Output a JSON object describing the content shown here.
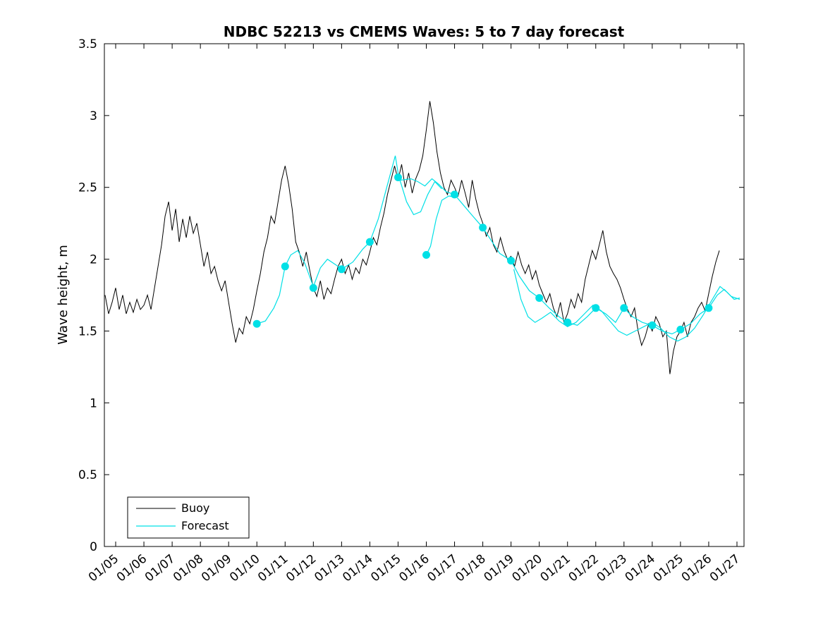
{
  "figure": {
    "title": "NDBC 52213 vs CMEMS Waves: 5 to 7 day forecast",
    "ylabel": "Wave height, m",
    "background_color": "#ffffff",
    "axes_color": "#000000"
  },
  "legend": {
    "entries": [
      {
        "label": "Buoy",
        "color": "#000000"
      },
      {
        "label": "Forecast",
        "color": "#00e0e6"
      }
    ],
    "position": "bottom-left",
    "border_color": "#000000"
  },
  "chart_data": {
    "type": "line",
    "title": "NDBC 52213 vs CMEMS Waves: 5 to 7 day forecast",
    "xlabel": "",
    "ylabel": "Wave height, m",
    "xlim": [
      4.6,
      27.25
    ],
    "ylim": [
      0,
      3.5
    ],
    "grid": false,
    "yticks": [
      0,
      0.5,
      1,
      1.5,
      2,
      2.5,
      3,
      3.5
    ],
    "ytick_labels": [
      "0",
      "0.5",
      "1",
      "1.5",
      "2",
      "2.5",
      "3",
      "3.5"
    ],
    "xticks": [
      5,
      6,
      7,
      8,
      9,
      10,
      11,
      12,
      13,
      14,
      15,
      16,
      17,
      18,
      19,
      20,
      21,
      22,
      23,
      24,
      25,
      26,
      27
    ],
    "xtick_labels": [
      "01/05",
      "01/06",
      "01/07",
      "01/08",
      "01/09",
      "01/10",
      "01/11",
      "01/12",
      "01/13",
      "01/14",
      "01/15",
      "01/16",
      "01/17",
      "01/18",
      "01/19",
      "01/20",
      "01/21",
      "01/22",
      "01/23",
      "01/24",
      "01/25",
      "01/26",
      "01/27"
    ],
    "series": [
      {
        "name": "Buoy",
        "color": "#000000",
        "style": "noisy-line",
        "x_start": 4.625,
        "x_step": 0.125,
        "values": [
          1.75,
          1.62,
          1.7,
          1.8,
          1.65,
          1.75,
          1.62,
          1.7,
          1.63,
          1.72,
          1.65,
          1.68,
          1.75,
          1.65,
          1.8,
          1.95,
          2.1,
          2.3,
          2.4,
          2.2,
          2.35,
          2.12,
          2.28,
          2.15,
          2.3,
          2.18,
          2.25,
          2.1,
          1.95,
          2.05,
          1.9,
          1.95,
          1.85,
          1.78,
          1.85,
          1.7,
          1.55,
          1.42,
          1.52,
          1.48,
          1.6,
          1.55,
          1.65,
          1.78,
          1.9,
          2.05,
          2.15,
          2.3,
          2.25,
          2.4,
          2.55,
          2.65,
          2.52,
          2.35,
          2.12,
          2.05,
          1.95,
          2.05,
          1.92,
          1.8,
          1.74,
          1.85,
          1.72,
          1.8,
          1.76,
          1.86,
          1.95,
          2.0,
          1.9,
          1.96,
          1.86,
          1.94,
          1.9,
          2.0,
          1.96,
          2.05,
          2.15,
          2.1,
          2.22,
          2.32,
          2.45,
          2.55,
          2.65,
          2.55,
          2.66,
          2.5,
          2.6,
          2.46,
          2.56,
          2.62,
          2.72,
          2.9,
          3.1,
          2.95,
          2.75,
          2.6,
          2.5,
          2.45,
          2.55,
          2.5,
          2.44,
          2.55,
          2.46,
          2.36,
          2.55,
          2.42,
          2.32,
          2.25,
          2.16,
          2.22,
          2.1,
          2.05,
          2.15,
          2.06,
          2.0,
          2.02,
          1.95,
          2.05,
          1.96,
          1.9,
          1.96,
          1.86,
          1.92,
          1.82,
          1.76,
          1.7,
          1.76,
          1.66,
          1.6,
          1.7,
          1.56,
          1.62,
          1.72,
          1.66,
          1.76,
          1.7,
          1.86,
          1.96,
          2.06,
          2.0,
          2.1,
          2.2,
          2.05,
          1.95,
          1.9,
          1.86,
          1.8,
          1.72,
          1.65,
          1.6,
          1.66,
          1.5,
          1.4,
          1.46,
          1.55,
          1.5,
          1.6,
          1.55,
          1.46,
          1.5,
          1.2,
          1.36,
          1.46,
          1.5,
          1.56,
          1.46,
          1.56,
          1.6,
          1.66,
          1.7,
          1.64,
          1.76,
          1.88,
          1.98,
          2.06
        ]
      },
      {
        "name": "Forecast",
        "color": "#00e0e6",
        "style": "line-with-daily-markers",
        "segments": [
          [
            [
              10.0,
              1.55
            ],
            [
              10.3,
              1.57
            ],
            [
              10.6,
              1.66
            ],
            [
              10.8,
              1.75
            ],
            [
              11.0,
              1.95
            ],
            [
              11.2,
              2.03
            ],
            [
              11.45,
              2.06
            ],
            [
              11.7,
              1.97
            ],
            [
              12.0,
              1.81
            ],
            [
              12.25,
              1.94
            ],
            [
              12.5,
              2.0
            ],
            [
              12.8,
              1.96
            ],
            [
              13.0,
              1.93
            ],
            [
              13.4,
              1.98
            ],
            [
              13.75,
              2.07
            ],
            [
              14.0,
              2.12
            ],
            [
              14.3,
              2.28
            ],
            [
              14.6,
              2.5
            ],
            [
              14.9,
              2.72
            ],
            [
              15.0,
              2.6
            ],
            [
              15.1,
              2.55
            ],
            [
              15.45,
              2.56
            ],
            [
              15.7,
              2.54
            ],
            [
              15.95,
              2.51
            ],
            [
              16.2,
              2.56
            ],
            [
              16.45,
              2.52
            ],
            [
              16.7,
              2.47
            ],
            [
              17.0,
              2.45
            ],
            [
              17.3,
              2.38
            ],
            [
              17.6,
              2.31
            ],
            [
              18.0,
              2.22
            ],
            [
              18.3,
              2.13
            ],
            [
              18.6,
              2.04
            ],
            [
              19.0,
              1.99
            ],
            [
              19.3,
              1.88
            ],
            [
              19.65,
              1.78
            ],
            [
              20.0,
              1.73
            ],
            [
              20.35,
              1.66
            ],
            [
              20.7,
              1.6
            ],
            [
              21.0,
              1.56
            ],
            [
              21.35,
              1.54
            ],
            [
              21.7,
              1.6
            ],
            [
              22.0,
              1.66
            ],
            [
              22.35,
              1.62
            ],
            [
              22.7,
              1.56
            ],
            [
              23.0,
              1.66
            ],
            [
              23.3,
              1.6
            ],
            [
              23.65,
              1.56
            ],
            [
              24.0,
              1.54
            ],
            [
              24.35,
              1.5
            ],
            [
              24.7,
              1.48
            ],
            [
              25.0,
              1.51
            ],
            [
              25.35,
              1.55
            ],
            [
              25.7,
              1.62
            ],
            [
              26.0,
              1.66
            ],
            [
              26.3,
              1.75
            ],
            [
              26.55,
              1.79
            ],
            [
              26.8,
              1.74
            ],
            [
              27.1,
              1.72
            ]
          ],
          [
            [
              15.05,
              2.56
            ],
            [
              15.3,
              2.4
            ],
            [
              15.55,
              2.31
            ],
            [
              15.8,
              2.33
            ],
            [
              16.05,
              2.45
            ],
            [
              16.3,
              2.54
            ],
            [
              16.55,
              2.49
            ]
          ],
          [
            [
              16.0,
              2.03
            ],
            [
              16.15,
              2.09
            ],
            [
              16.35,
              2.28
            ],
            [
              16.55,
              2.41
            ],
            [
              16.8,
              2.44
            ],
            [
              17.05,
              2.43
            ]
          ],
          [
            [
              19.1,
              1.93
            ],
            [
              19.35,
              1.72
            ],
            [
              19.6,
              1.6
            ],
            [
              19.85,
              1.56
            ],
            [
              20.1,
              1.59
            ],
            [
              20.4,
              1.63
            ],
            [
              20.7,
              1.57
            ],
            [
              21.0,
              1.53
            ],
            [
              21.3,
              1.56
            ],
            [
              21.6,
              1.62
            ],
            [
              21.9,
              1.68
            ],
            [
              22.2,
              1.64
            ],
            [
              22.5,
              1.57
            ],
            [
              22.8,
              1.5
            ],
            [
              23.1,
              1.47
            ],
            [
              23.4,
              1.5
            ],
            [
              23.7,
              1.53
            ],
            [
              24.0,
              1.56
            ],
            [
              24.3,
              1.52
            ],
            [
              24.6,
              1.46
            ],
            [
              24.9,
              1.43
            ],
            [
              25.2,
              1.46
            ],
            [
              25.5,
              1.52
            ],
            [
              25.8,
              1.61
            ],
            [
              26.1,
              1.71
            ],
            [
              26.4,
              1.81
            ],
            [
              26.65,
              1.77
            ],
            [
              26.9,
              1.72
            ],
            [
              27.1,
              1.73
            ]
          ]
        ],
        "markers": [
          [
            10.0,
            1.55
          ],
          [
            11.0,
            1.95
          ],
          [
            12.0,
            1.8
          ],
          [
            13.0,
            1.93
          ],
          [
            14.0,
            2.12
          ],
          [
            15.0,
            2.57
          ],
          [
            16.0,
            2.03
          ],
          [
            17.0,
            2.45
          ],
          [
            18.0,
            2.22
          ],
          [
            19.0,
            1.99
          ],
          [
            20.0,
            1.73
          ],
          [
            21.0,
            1.56
          ],
          [
            22.0,
            1.66
          ],
          [
            23.0,
            1.66
          ],
          [
            24.0,
            1.54
          ],
          [
            25.0,
            1.51
          ],
          [
            26.0,
            1.66
          ]
        ]
      }
    ]
  }
}
